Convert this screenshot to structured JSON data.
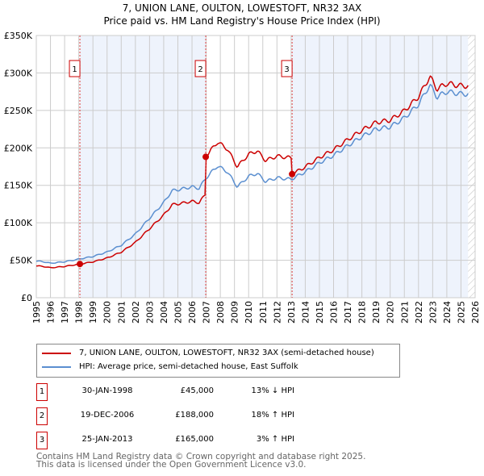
{
  "chart_data": {
    "type": "line",
    "title": "7, UNION LANE, OULTON, LOWESTOFT, NR32 3AX",
    "subtitle": "Price paid vs. HM Land Registry's House Price Index (HPI)",
    "xlim": [
      1995,
      2026
    ],
    "ylim": [
      0,
      350000
    ],
    "x_ticks": [
      "1995",
      "1996",
      "1997",
      "1998",
      "1999",
      "2000",
      "2001",
      "2002",
      "2003",
      "2004",
      "2005",
      "2006",
      "2007",
      "2008",
      "2009",
      "2010",
      "2011",
      "2012",
      "2013",
      "2014",
      "2015",
      "2016",
      "2017",
      "2018",
      "2019",
      "2020",
      "2021",
      "2022",
      "2023",
      "2024",
      "2025",
      "2026"
    ],
    "y_ticks": [
      {
        "v": 0,
        "label": "£0"
      },
      {
        "v": 50000,
        "label": "£50K"
      },
      {
        "v": 100000,
        "label": "£100K"
      },
      {
        "v": 150000,
        "label": "£150K"
      },
      {
        "v": 200000,
        "label": "£200K"
      },
      {
        "v": 250000,
        "label": "£250K"
      },
      {
        "v": 300000,
        "label": "£300K"
      },
      {
        "v": 350000,
        "label": "£350K"
      }
    ],
    "grid": true,
    "series": [
      {
        "name": "7, UNION LANE, OULTON, LOWESTOFT, NR32 3AX (semi-detached house)",
        "color": "#cc0000"
      },
      {
        "name": "HPI: Average price, semi-detached house, East Suffolk",
        "color": "#5b8fd0",
        "x": [
          1995,
          1995.5,
          1996,
          1997,
          1998,
          1999,
          2000,
          2001,
          2002,
          2003,
          2004,
          2004.6,
          2005,
          2006,
          2006.5,
          2007,
          2007.8,
          2008.5,
          2009.2,
          2010,
          2010.6,
          2011.2,
          2012,
          2013,
          2014,
          2015,
          2016,
          2017,
          2018,
          2019,
          2020,
          2021,
          2022,
          2022.8,
          2023.3,
          2024,
          2025,
          2025.5
        ],
        "y": [
          49000,
          48000,
          46000,
          48000,
          51500,
          55000,
          61000,
          70000,
          85000,
          106000,
          127000,
          143000,
          144000,
          148000,
          146000,
          160000,
          176000,
          168000,
          148000,
          162000,
          166000,
          155000,
          160000,
          158000,
          168000,
          180000,
          190000,
          203000,
          215000,
          225000,
          228000,
          240000,
          258000,
          284000,
          268000,
          275000,
          272000,
          272000
        ]
      }
    ],
    "sales": [
      {
        "n": "1",
        "date": "30-JAN-1998",
        "x": 1998.08,
        "price": "£45,000",
        "value": 45000,
        "hpi": "13% ↓ HPI"
      },
      {
        "n": "2",
        "date": "19-DEC-2006",
        "x": 2006.97,
        "price": "£188,000",
        "value": 188000,
        "hpi": "18% ↑ HPI"
      },
      {
        "n": "3",
        "date": "25-JAN-2013",
        "x": 2013.07,
        "price": "£165,000",
        "value": 165000,
        "hpi": "3% ↑ HPI"
      }
    ],
    "data_end": 2025.5
  },
  "footer": [
    "Contains HM Land Registry data © Crown copyright and database right 2025.",
    "This data is licensed under the Open Government Licence v3.0."
  ]
}
